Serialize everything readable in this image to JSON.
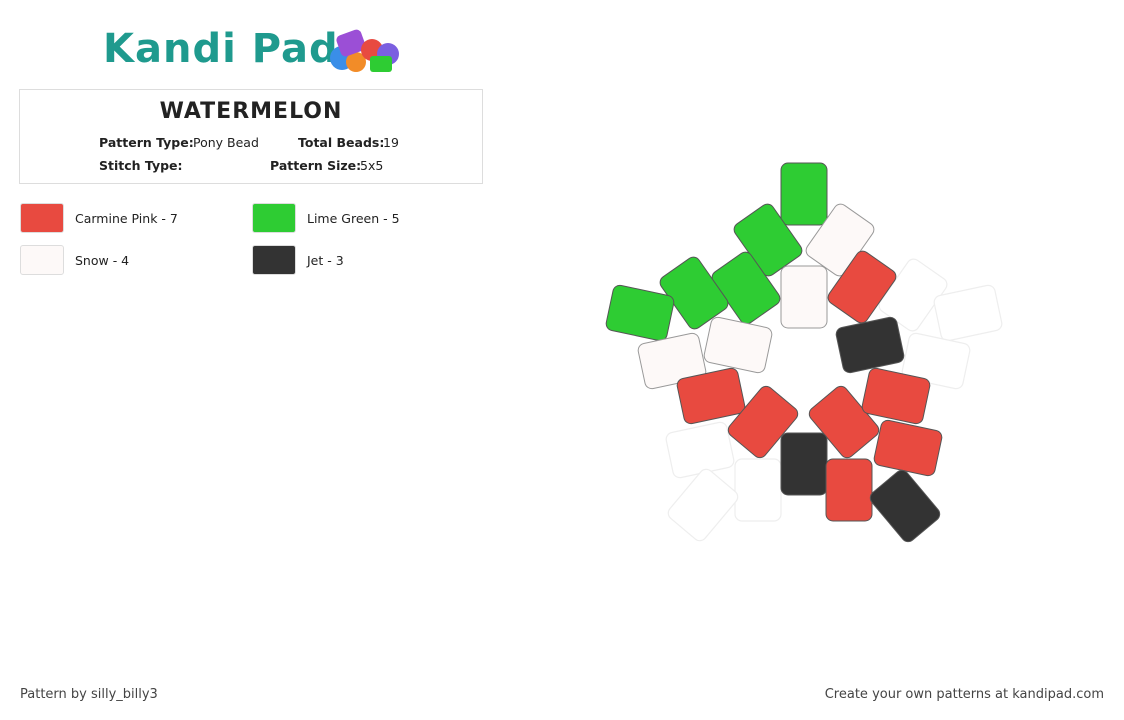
{
  "header": {
    "logo": "Kandi Pad"
  },
  "pattern": {
    "title": "WATERMELON",
    "pattern_type_label": "Pattern Type:",
    "pattern_type": "Pony Bead",
    "total_beads_label": "Total Beads:",
    "total_beads": "19",
    "stitch_type_label": "Stitch Type:",
    "pattern_size_label": "Pattern Size:",
    "pattern_size": "5x5"
  },
  "legend": [
    {
      "label": "Carmine Pink - 7",
      "color": "#e84a40"
    },
    {
      "label": "Lime Green - 5",
      "color": "#2ecc33"
    },
    {
      "label": "Snow - 4",
      "color": "#fdf9f8"
    },
    {
      "label": "Jet - 3",
      "color": "#333333"
    }
  ],
  "footer": {
    "credit": "Pattern by silly_billy3",
    "promo": "Create your own patterns at kandipad.com"
  }
}
